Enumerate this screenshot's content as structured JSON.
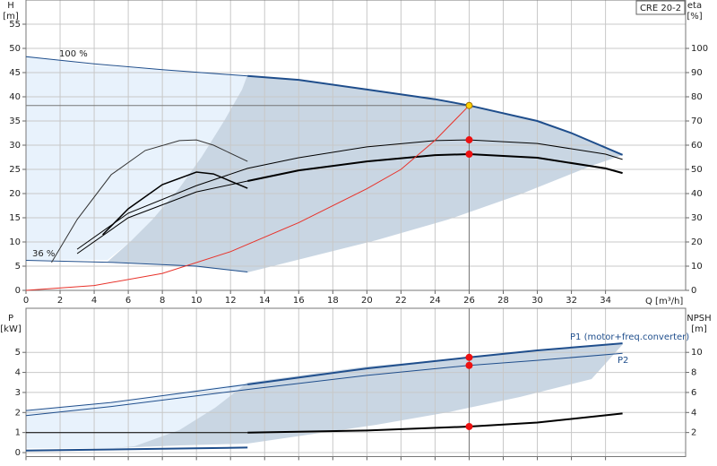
{
  "chart_data": [
    {
      "type": "line",
      "title": "CRE 20-2",
      "ylabel": "H",
      "yunit": "[m]",
      "y2label": "eta",
      "y2unit": "[%]",
      "xlabel": "Q [m³/h]",
      "annotations": [
        "100 %",
        "36 %"
      ],
      "xlim": [
        0,
        38.7
      ],
      "xticks": [
        0,
        2,
        4,
        6,
        8,
        10,
        12,
        14,
        16,
        18,
        20,
        22,
        24,
        26,
        28,
        30,
        32,
        34
      ],
      "ylim": [
        0,
        60
      ],
      "yticks": [
        0,
        5,
        10,
        15,
        20,
        25,
        30,
        35,
        40,
        45,
        50,
        55
      ],
      "y2lim": [
        0,
        120
      ],
      "y2ticks": [
        0,
        10,
        20,
        30,
        40,
        50,
        60,
        70,
        80,
        90,
        100
      ],
      "grid": true,
      "xtick_labels": true,
      "series": [
        {
          "color": "#1f4e8c",
          "width": 2,
          "x": [
            13,
            16,
            20,
            24,
            26,
            30,
            32,
            35
          ],
          "values": [
            44.3,
            43.5,
            41.5,
            39.5,
            38.2,
            35,
            32.5,
            28
          ]
        },
        {
          "color": "#1f4e8c",
          "width": 1,
          "x": [
            0,
            4,
            8,
            13
          ],
          "values": [
            48.3,
            46.8,
            45.6,
            44.3
          ]
        },
        {
          "color": "#1f4e8c",
          "width": 1,
          "x": [
            0,
            5,
            10,
            13
          ],
          "values": [
            6.2,
            5.8,
            5,
            3.8
          ]
        },
        {
          "color": "#000000",
          "width": 2,
          "axis": "y2",
          "x": [
            13,
            16,
            20,
            24,
            26,
            30,
            34,
            35
          ],
          "values": [
            45.2,
            49.6,
            53.3,
            55.9,
            56.3,
            54.8,
            50.4,
            48.5
          ]
        },
        {
          "color": "#000000",
          "width": 1,
          "axis": "y2",
          "x": [
            3,
            6,
            10,
            13
          ],
          "values": [
            15.2,
            30,
            40.7,
            45.2
          ]
        },
        {
          "color": "#000000",
          "width": 1,
          "axis": "y2",
          "x": [
            3,
            6,
            10,
            13,
            16,
            20,
            24,
            26,
            30,
            34,
            35
          ],
          "values": [
            17,
            31.9,
            43.3,
            50.4,
            54.8,
            59.3,
            61.9,
            62.2,
            60.7,
            56.3,
            54.1
          ]
        },
        {
          "color": "#333333",
          "width": 1,
          "axis": "y2",
          "x": [
            1.5,
            3,
            5,
            7,
            9,
            10,
            11,
            13
          ],
          "values": [
            11.5,
            29.3,
            47.8,
            57.8,
            61.9,
            62.2,
            60,
            53.3
          ]
        },
        {
          "color": "#000000",
          "width": 1.5,
          "axis": "y2",
          "x": [
            4.5,
            6,
            8,
            10,
            11,
            13
          ],
          "values": [
            23,
            33.7,
            43.7,
            48.9,
            48.1,
            42.2
          ]
        },
        {
          "color": "#e8322a",
          "width": 1,
          "x": [
            0,
            4,
            8,
            12,
            16,
            20,
            22,
            24,
            26
          ],
          "values": [
            0,
            1,
            3.5,
            8,
            14,
            21,
            25,
            31,
            38.2
          ]
        }
      ],
      "markers": [
        {
          "x": 26,
          "y": 38.2,
          "color": "#ffd200",
          "guide": "cross"
        },
        {
          "x": 26,
          "y": 62.2,
          "axis": "y2",
          "color": "#ee1111"
        },
        {
          "x": 26,
          "y": 56.3,
          "axis": "y2",
          "color": "#ee1111"
        }
      ]
    },
    {
      "type": "line",
      "ylabel": "P",
      "yunit": "[kW]",
      "y2label": "NPSH",
      "y2unit": "[m]",
      "xlim": [
        0,
        38.7
      ],
      "xticks": [
        0,
        2,
        4,
        6,
        8,
        10,
        12,
        14,
        16,
        18,
        20,
        22,
        24,
        26,
        28,
        30,
        32,
        34
      ],
      "ylim": [
        -0.2,
        7.2
      ],
      "yticks": [
        0,
        1,
        2,
        3,
        4,
        5
      ],
      "y2lim": [
        -0.4,
        14.4
      ],
      "y2ticks": [
        2,
        4,
        6,
        8,
        10
      ],
      "grid": true,
      "xtick_labels": false,
      "series": [
        {
          "name": "P1 (motor+freq.converter)",
          "color": "#1f4e8c",
          "width": 2,
          "x": [
            13,
            20,
            26,
            30,
            35
          ],
          "values": [
            3.4,
            4.2,
            4.75,
            5.1,
            5.45
          ]
        },
        {
          "color": "#1f4e8c",
          "width": 1,
          "x": [
            0,
            5,
            13
          ],
          "values": [
            2.1,
            2.5,
            3.4
          ]
        },
        {
          "name": "P2",
          "color": "#1f4e8c",
          "width": 1,
          "x": [
            0,
            5,
            13,
            20,
            26,
            30,
            35
          ],
          "values": [
            1.85,
            2.3,
            3.15,
            3.85,
            4.35,
            4.6,
            4.95
          ]
        },
        {
          "color": "#1f4e8c",
          "width": 2,
          "x": [
            0,
            13
          ],
          "values": [
            0.1,
            0.25
          ]
        },
        {
          "color": "#000000",
          "width": 1,
          "axis": "y2",
          "x": [
            0,
            13
          ],
          "values": [
            2,
            2
          ]
        },
        {
          "color": "#000000",
          "width": 2,
          "axis": "y2",
          "x": [
            13,
            20,
            26,
            30,
            35
          ],
          "values": [
            2,
            2.2,
            2.6,
            3,
            3.9
          ]
        }
      ],
      "markers": [
        {
          "x": 26,
          "y": 4.75,
          "color": "#ee1111",
          "guide": "vertical"
        },
        {
          "x": 26,
          "y": 4.35,
          "color": "#ee1111"
        },
        {
          "x": 26,
          "y": 2.6,
          "axis": "y2",
          "color": "#ee1111"
        }
      ]
    }
  ]
}
